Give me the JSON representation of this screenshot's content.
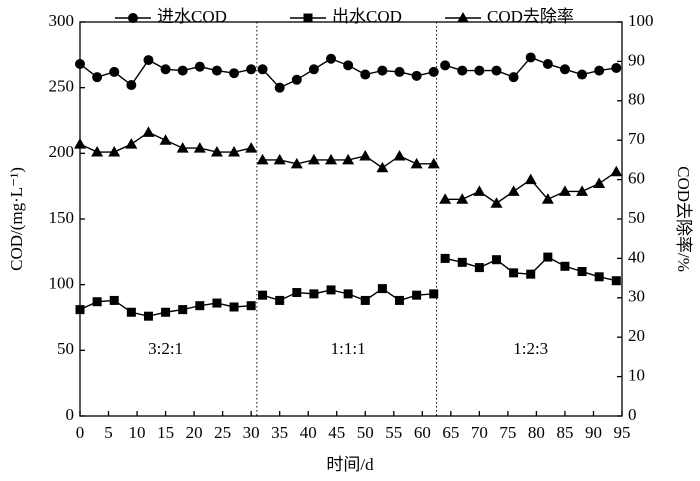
{
  "chart_data": {
    "type": "line",
    "x": [
      0,
      3,
      6,
      9,
      12,
      15,
      18,
      21,
      24,
      27,
      30,
      32,
      35,
      38,
      41,
      44,
      47,
      50,
      53,
      56,
      59,
      62,
      64,
      67,
      70,
      73,
      76,
      79,
      82,
      85,
      88,
      91,
      94
    ],
    "series": [
      {
        "name": "进水COD",
        "color": "#000000",
        "marker": "circle",
        "axis": "y",
        "values": [
          268,
          258,
          262,
          252,
          271,
          264,
          263,
          266,
          263,
          261,
          264,
          264,
          250,
          256,
          264,
          272,
          267,
          260,
          263,
          262,
          259,
          262,
          267,
          263,
          263,
          263,
          258,
          273,
          268,
          264,
          260,
          263,
          265
        ]
      },
      {
        "name": "出水COD",
        "color": "#000000",
        "marker": "square",
        "axis": "y",
        "values": [
          81,
          87,
          88,
          79,
          76,
          79,
          81,
          84,
          86,
          83,
          84,
          92,
          88,
          94,
          93,
          96,
          93,
          88,
          97,
          88,
          92,
          93,
          120,
          117,
          113,
          119,
          109,
          108,
          121,
          114,
          110,
          106,
          103
        ]
      },
      {
        "name": "COD去除率",
        "color": "#000000",
        "marker": "triangle",
        "axis": "y2",
        "values": [
          69,
          67,
          67,
          69,
          72,
          70,
          68,
          68,
          67,
          67,
          68,
          65,
          65,
          64,
          65,
          65,
          65,
          66,
          63,
          66,
          64,
          64,
          55,
          55,
          57,
          54,
          57,
          60,
          55,
          57,
          57,
          59,
          62
        ]
      }
    ],
    "segments": [
      [
        0,
        11
      ],
      [
        11,
        22
      ],
      [
        22,
        33
      ]
    ],
    "dividers": [
      31,
      62.5
    ],
    "annotations": [
      {
        "text": "3:2:1",
        "x": 15,
        "y": 50
      },
      {
        "text": "1:1:1",
        "x": 47,
        "y": 50
      },
      {
        "text": "1:2:3",
        "x": 79,
        "y": 50
      }
    ],
    "xlabel": "时间/d",
    "ylabel": "COD/(mg·L⁻¹)",
    "y2label": "COD去除率/%",
    "xlim": [
      0,
      95
    ],
    "xticks": [
      0,
      5,
      10,
      15,
      20,
      25,
      30,
      35,
      40,
      45,
      50,
      55,
      60,
      65,
      70,
      75,
      80,
      85,
      90,
      95
    ],
    "ylim": [
      0,
      300
    ],
    "yticks": [
      0,
      50,
      100,
      150,
      200,
      250,
      300
    ],
    "y2lim": [
      0,
      100
    ],
    "y2ticks": [
      0,
      10,
      20,
      30,
      40,
      50,
      60,
      70,
      80,
      90,
      100
    ],
    "legend": "top"
  }
}
